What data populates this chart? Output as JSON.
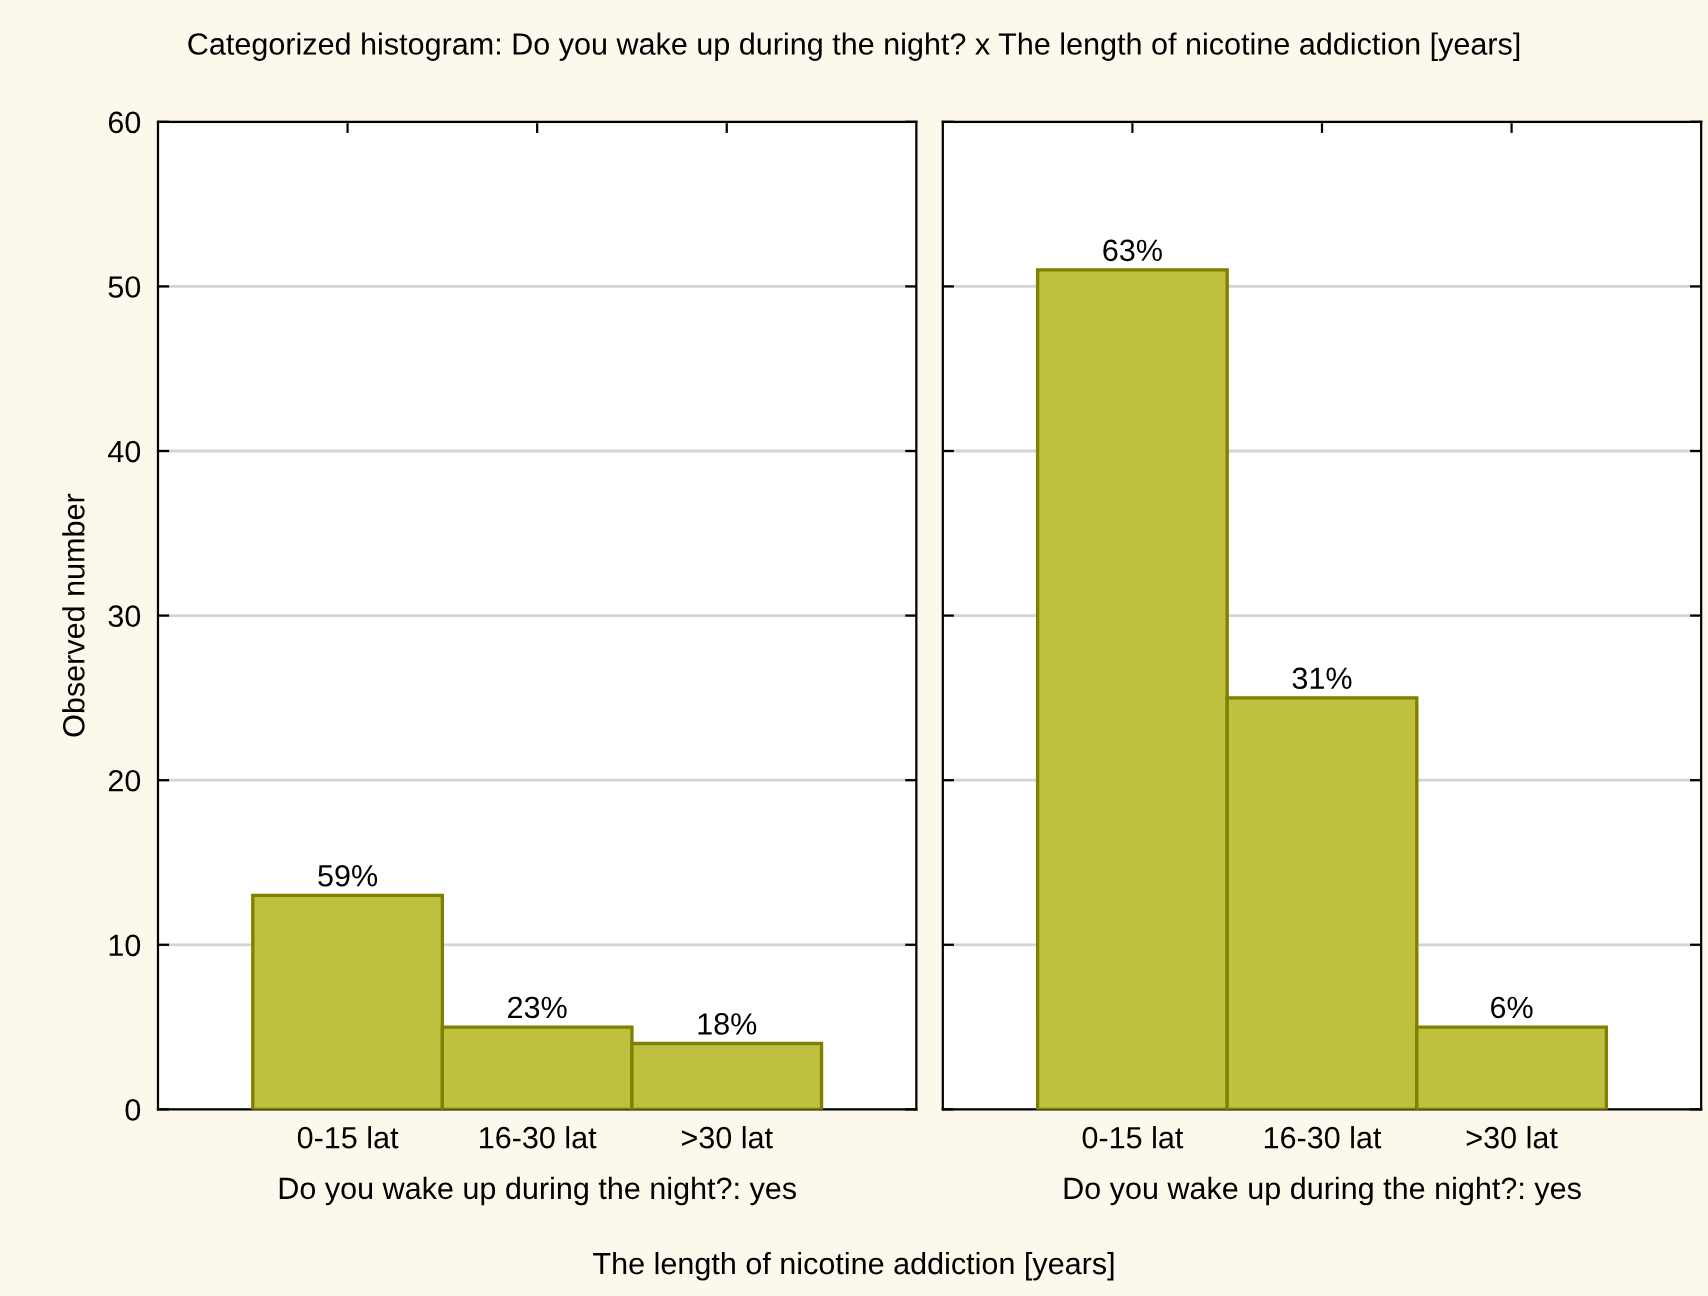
{
  "chart_data": [
    {
      "type": "bar",
      "title": "Categorized histogram: Do you wake up during the night? x The length of nicotine addiction [years]",
      "ylabel": "Observed number",
      "xlabel": "Do you wake up during the night?: yes",
      "categories": [
        "0-15 lat",
        "16-30 lat",
        ">30 lat"
      ],
      "annotations": [
        "The length of nicotine addiction [years]",
        {
          "text": "59%",
          "x": "0-15 lat",
          "y": 13
        },
        {
          "text": "23%",
          "x": "16-30 lat",
          "y": 5
        },
        {
          "text": "18%",
          "x": ">30 lat",
          "y": 4
        }
      ],
      "values": [
        13,
        5,
        4
      ],
      "color": "#c0c040",
      "ylim": [
        0,
        60
      ],
      "yticks": [
        0,
        10,
        20,
        30,
        40,
        50,
        60
      ],
      "grid": "y"
    },
    {
      "type": "bar",
      "xlabel": "Do you wake up during the night?: yes",
      "categories": [
        "0-15 lat",
        "16-30 lat",
        ">30 lat"
      ],
      "annotations": [
        {
          "text": "63%",
          "x": "0-15 lat",
          "y": 51
        },
        {
          "text": "31%",
          "x": "16-30 lat",
          "y": 25
        },
        {
          "text": "6%",
          "x": ">30 lat",
          "y": 5
        }
      ],
      "values": [
        51,
        25,
        5
      ],
      "color": "#c0c040",
      "ylim": [
        0,
        60
      ],
      "yticks": [
        0,
        10,
        20,
        30,
        40,
        50,
        60
      ],
      "grid": "y",
      "tick_labels": "x"
    }
  ]
}
